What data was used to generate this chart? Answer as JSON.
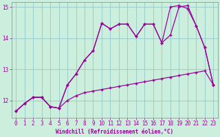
{
  "xlabel": "Windchill (Refroidissement éolien,°C)",
  "background_color": "#cceedd",
  "grid_color": "#99cccc",
  "line_color": "#990099",
  "spine_color": "#888888",
  "xlim": [
    -0.5,
    23.5
  ],
  "ylim": [
    11.45,
    15.15
  ],
  "yticks": [
    12,
    13,
    14,
    15
  ],
  "ytick_labels": [
    "12",
    "13",
    "14",
    "15"
  ],
  "xticks": [
    0,
    1,
    2,
    3,
    4,
    5,
    6,
    7,
    8,
    9,
    10,
    11,
    12,
    13,
    14,
    15,
    16,
    17,
    18,
    19,
    20,
    21,
    22,
    23
  ],
  "line1_x": [
    0,
    1,
    2,
    3,
    4,
    5,
    6,
    7,
    8,
    9,
    10,
    11,
    12,
    13,
    14,
    15,
    16,
    17,
    18,
    19,
    20,
    21,
    22,
    23
  ],
  "line1_y": [
    11.65,
    11.9,
    12.1,
    12.1,
    11.8,
    11.75,
    12.0,
    12.15,
    12.25,
    12.3,
    12.35,
    12.4,
    12.45,
    12.5,
    12.55,
    12.6,
    12.65,
    12.7,
    12.75,
    12.8,
    12.85,
    12.9,
    12.95,
    12.5
  ],
  "line2_x": [
    0,
    1,
    2,
    3,
    4,
    5,
    6,
    7,
    8,
    9,
    10,
    11,
    12,
    13,
    14,
    15,
    16,
    17,
    18,
    19,
    20,
    21,
    22,
    23
  ],
  "line2_y": [
    11.65,
    11.9,
    12.1,
    12.1,
    11.8,
    11.75,
    12.5,
    12.85,
    13.3,
    13.6,
    14.48,
    14.3,
    14.45,
    14.45,
    14.05,
    14.45,
    14.45,
    13.85,
    14.1,
    15.0,
    15.05,
    14.4,
    13.7,
    12.5
  ],
  "line3_x": [
    0,
    1,
    2,
    3,
    4,
    5,
    6,
    7,
    8,
    9,
    10,
    11,
    12,
    13,
    14,
    15,
    16,
    17,
    18,
    19,
    20,
    21,
    22,
    23
  ],
  "line3_y": [
    11.65,
    11.9,
    12.1,
    12.1,
    11.8,
    11.75,
    12.5,
    12.85,
    13.3,
    13.6,
    14.48,
    14.3,
    14.45,
    14.45,
    14.05,
    14.45,
    14.45,
    13.85,
    15.0,
    15.05,
    14.95,
    14.4,
    13.7,
    12.5
  ],
  "tick_fontsize": 5.5,
  "xlabel_fontsize": 5.5
}
